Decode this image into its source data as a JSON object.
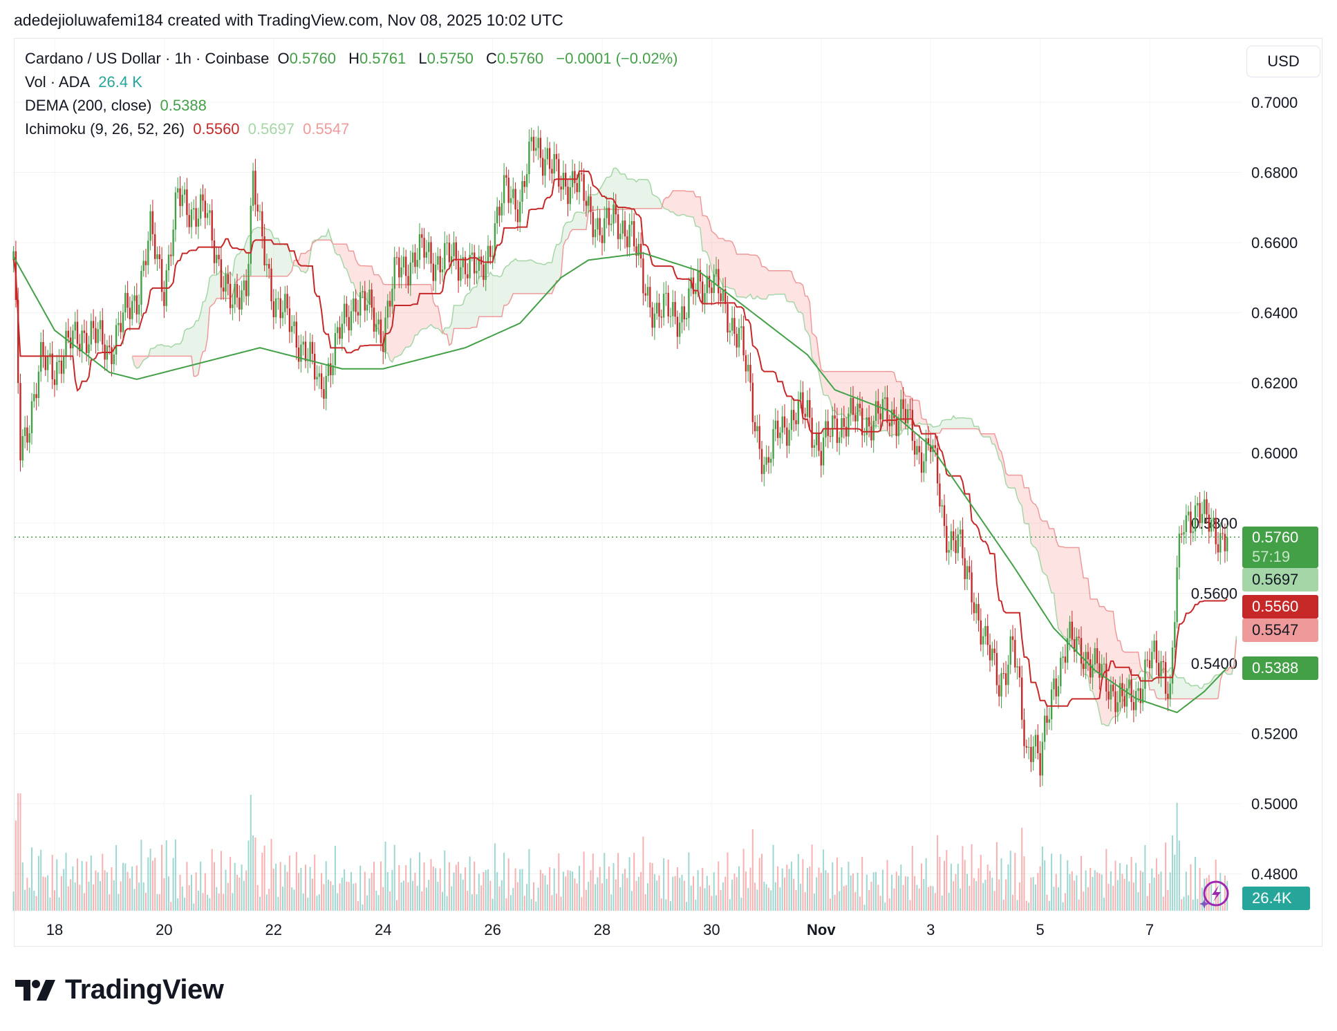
{
  "credit": "adedejioluwafemi184 created with TradingView.com, Nov 08, 2025 10:02 UTC",
  "legend": {
    "symbol": "Cardano / US Dollar · 1h · Coinbase",
    "o_label": "O",
    "o": "0.5760",
    "h_label": "H",
    "h": "0.5761",
    "l_label": "L",
    "l": "0.5750",
    "c_label": "C",
    "c": "0.5760",
    "change": "−0.0001 (−0.02%)",
    "vol_label": "Vol · ADA",
    "vol": "26.4 K",
    "dema_label": "DEMA (200, close)",
    "dema": "0.5388",
    "ichimoku_label": "Ichimoku (9, 26, 52, 26)",
    "ichimoku_values": [
      "0.5560",
      "0.5697",
      "0.5547"
    ]
  },
  "currency_button": "USD",
  "badges": {
    "last_price": "0.5760",
    "countdown": "57:19",
    "span_a": "0.5697",
    "base_line": "0.5560",
    "span_b": "0.5547",
    "dema": "0.5388",
    "volume": "26.4K"
  },
  "colors": {
    "up": "#43a047",
    "down": "#c62828",
    "up_light": "#a5d6a7",
    "down_light": "#ef9a9a",
    "volume": "#26a69a",
    "dema": "#43a047",
    "accent": "#9c27b0"
  },
  "icons": {
    "lightning": "lightning-icon",
    "logo": "tradingview-logo"
  },
  "brand": "TradingView",
  "chart_data": {
    "type": "candlestick",
    "interval": "1h",
    "ylim": [
      0.47,
      0.71
    ],
    "yticks": [
      "0.7000",
      "0.6800",
      "0.6600",
      "0.6400",
      "0.6200",
      "0.6000",
      "0.5800",
      "0.5600",
      "0.5400",
      "0.5200",
      "0.5000",
      "0.4800"
    ],
    "xticks": [
      {
        "label": "18",
        "date": "2025-10-18T00:00"
      },
      {
        "label": "20",
        "date": "2025-10-20T00:00"
      },
      {
        "label": "22",
        "date": "2025-10-22T00:00"
      },
      {
        "label": "24",
        "date": "2025-10-24T00:00"
      },
      {
        "label": "26",
        "date": "2025-10-26T00:00"
      },
      {
        "label": "28",
        "date": "2025-10-28T00:00"
      },
      {
        "label": "30",
        "date": "2025-10-30T00:00"
      },
      {
        "label": "Nov",
        "date": "2025-11-01T00:00"
      },
      {
        "label": "3",
        "date": "2025-11-03T00:00"
      },
      {
        "label": "5",
        "date": "2025-11-05T00:00"
      },
      {
        "label": "7",
        "date": "2025-11-07T00:00"
      }
    ],
    "grid": true,
    "last_price": 0.576,
    "close_approx": [
      [
        "2025-10-17T06:00",
        0.655
      ],
      [
        "2025-10-17T09:00",
        0.6
      ],
      [
        "2025-10-17T18:00",
        0.625
      ],
      [
        "2025-10-18T00:00",
        0.625
      ],
      [
        "2025-10-18T12:00",
        0.635
      ],
      [
        "2025-10-19T00:00",
        0.63
      ],
      [
        "2025-10-19T12:00",
        0.645
      ],
      [
        "2025-10-19T18:00",
        0.662
      ],
      [
        "2025-10-20T00:00",
        0.648
      ],
      [
        "2025-10-20T06:00",
        0.672
      ],
      [
        "2025-10-20T18:00",
        0.668
      ],
      [
        "2025-10-21T00:00",
        0.655
      ],
      [
        "2025-10-21T06:00",
        0.64
      ],
      [
        "2025-10-21T12:00",
        0.65
      ],
      [
        "2025-10-21T15:00",
        0.678
      ],
      [
        "2025-10-21T18:00",
        0.662
      ],
      [
        "2025-10-22T00:00",
        0.645
      ],
      [
        "2025-10-22T08:00",
        0.635
      ],
      [
        "2025-10-22T14:00",
        0.63
      ],
      [
        "2025-10-22T20:00",
        0.618
      ],
      [
        "2025-10-23T00:00",
        0.625
      ],
      [
        "2025-10-23T12:00",
        0.645
      ],
      [
        "2025-10-23T18:00",
        0.64
      ],
      [
        "2025-10-24T00:00",
        0.635
      ],
      [
        "2025-10-24T06:00",
        0.652
      ],
      [
        "2025-10-24T12:00",
        0.655
      ],
      [
        "2025-10-24T18:00",
        0.657
      ],
      [
        "2025-10-25T00:00",
        0.655
      ],
      [
        "2025-10-25T12:00",
        0.655
      ],
      [
        "2025-10-25T18:00",
        0.65
      ],
      [
        "2025-10-26T00:00",
        0.662
      ],
      [
        "2025-10-26T06:00",
        0.675
      ],
      [
        "2025-10-26T12:00",
        0.672
      ],
      [
        "2025-10-26T18:00",
        0.688
      ],
      [
        "2025-10-27T00:00",
        0.685
      ],
      [
        "2025-10-27T06:00",
        0.675
      ],
      [
        "2025-10-27T12:00",
        0.68
      ],
      [
        "2025-10-27T18:00",
        0.668
      ],
      [
        "2025-10-28T00:00",
        0.665
      ],
      [
        "2025-10-28T12:00",
        0.665
      ],
      [
        "2025-10-28T18:00",
        0.648
      ],
      [
        "2025-10-29T00:00",
        0.64
      ],
      [
        "2025-10-29T12:00",
        0.64
      ],
      [
        "2025-10-29T18:00",
        0.648
      ],
      [
        "2025-10-30T00:00",
        0.65
      ],
      [
        "2025-10-30T06:00",
        0.64
      ],
      [
        "2025-10-30T12:00",
        0.635
      ],
      [
        "2025-10-30T18:00",
        0.612
      ],
      [
        "2025-10-31T00:00",
        0.595
      ],
      [
        "2025-10-31T06:00",
        0.608
      ],
      [
        "2025-10-31T12:00",
        0.61
      ],
      [
        "2025-10-31T18:00",
        0.612
      ],
      [
        "2025-11-01T00:00",
        0.6
      ],
      [
        "2025-11-01T06:00",
        0.608
      ],
      [
        "2025-11-01T12:00",
        0.61
      ],
      [
        "2025-11-01T18:00",
        0.609
      ],
      [
        "2025-11-02T00:00",
        0.61
      ],
      [
        "2025-11-02T12:00",
        0.612
      ],
      [
        "2025-11-02T18:00",
        0.6
      ],
      [
        "2025-11-03T00:00",
        0.603
      ],
      [
        "2025-11-03T06:00",
        0.578
      ],
      [
        "2025-11-03T12:00",
        0.575
      ],
      [
        "2025-11-03T15:00",
        0.565
      ],
      [
        "2025-11-03T18:00",
        0.562
      ],
      [
        "2025-11-04T00:00",
        0.545
      ],
      [
        "2025-11-04T06:00",
        0.535
      ],
      [
        "2025-11-04T12:00",
        0.545
      ],
      [
        "2025-11-04T18:00",
        0.515
      ],
      [
        "2025-11-04T21:00",
        0.52
      ],
      [
        "2025-11-05T00:00",
        0.51
      ],
      [
        "2025-11-05T06:00",
        0.535
      ],
      [
        "2025-11-05T12:00",
        0.545
      ],
      [
        "2025-11-05T18:00",
        0.545
      ],
      [
        "2025-11-06T00:00",
        0.538
      ],
      [
        "2025-11-06T06:00",
        0.535
      ],
      [
        "2025-11-06T12:00",
        0.528
      ],
      [
        "2025-11-06T18:00",
        0.532
      ],
      [
        "2025-11-07T00:00",
        0.54
      ],
      [
        "2025-11-07T06:00",
        0.54
      ],
      [
        "2025-11-07T09:00",
        0.532
      ],
      [
        "2025-11-07T12:00",
        0.565
      ],
      [
        "2025-11-07T15:00",
        0.58
      ],
      [
        "2025-11-07T21:00",
        0.585
      ],
      [
        "2025-11-08T00:00",
        0.58
      ],
      [
        "2025-11-08T10:00",
        0.576
      ]
    ],
    "dema_approx": [
      [
        "2025-10-17T06:00",
        0.656
      ],
      [
        "2025-10-18T00:00",
        0.635
      ],
      [
        "2025-10-19T00:00",
        0.623
      ],
      [
        "2025-10-19T12:00",
        0.621
      ],
      [
        "2025-10-21T00:00",
        0.627
      ],
      [
        "2025-10-21T18:00",
        0.63
      ],
      [
        "2025-10-23T06:00",
        0.624
      ],
      [
        "2025-10-24T00:00",
        0.624
      ],
      [
        "2025-10-25T12:00",
        0.63
      ],
      [
        "2025-10-26T12:00",
        0.637
      ],
      [
        "2025-10-27T06:00",
        0.65
      ],
      [
        "2025-10-27T18:00",
        0.655
      ],
      [
        "2025-10-28T18:00",
        0.657
      ],
      [
        "2025-10-29T18:00",
        0.652
      ],
      [
        "2025-10-30T18:00",
        0.64
      ],
      [
        "2025-10-31T18:00",
        0.628
      ],
      [
        "2025-11-01T06:00",
        0.618
      ],
      [
        "2025-11-02T06:00",
        0.612
      ],
      [
        "2025-11-03T00:00",
        0.602
      ],
      [
        "2025-11-03T18:00",
        0.585
      ],
      [
        "2025-11-04T12:00",
        0.568
      ],
      [
        "2025-11-05T06:00",
        0.55
      ],
      [
        "2025-11-06T00:00",
        0.538
      ],
      [
        "2025-11-06T18:00",
        0.53
      ],
      [
        "2025-11-07T12:00",
        0.526
      ],
      [
        "2025-11-08T00:00",
        0.532
      ],
      [
        "2025-11-08T10:00",
        0.5388
      ]
    ]
  }
}
